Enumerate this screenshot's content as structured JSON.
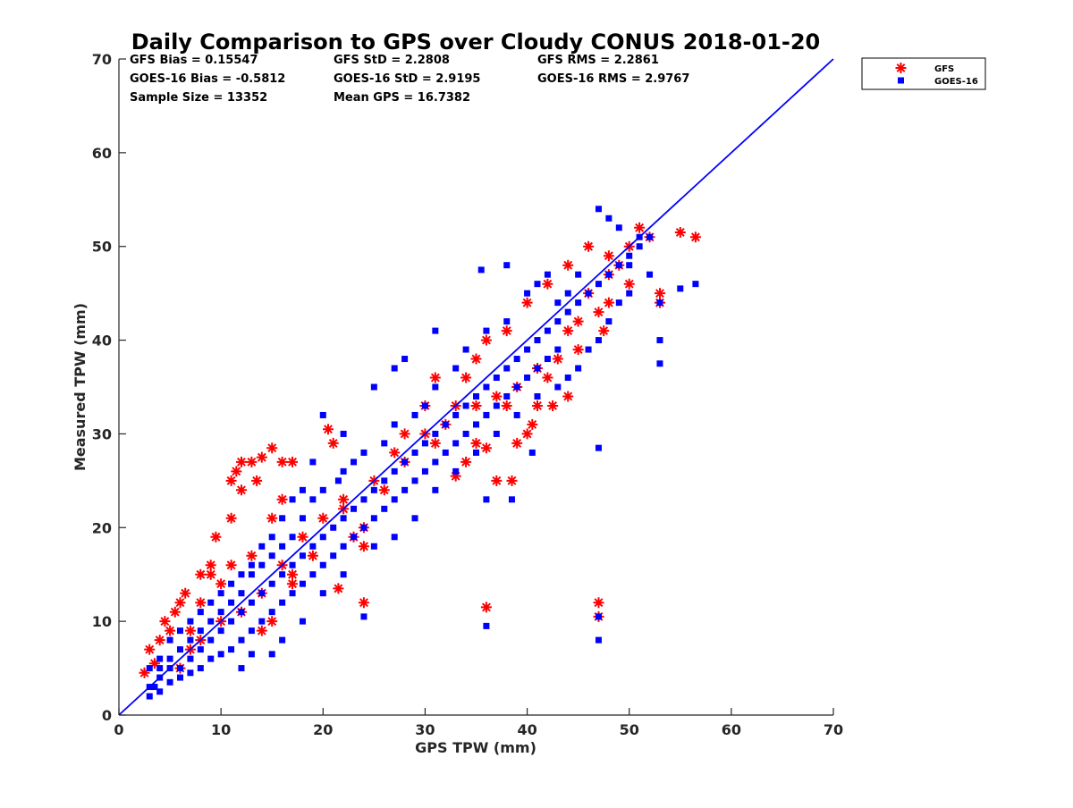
{
  "chart_data": {
    "type": "scatter",
    "title": "Daily Comparison to GPS over Cloudy CONUS 2018-01-20",
    "xlabel": "GPS TPW (mm)",
    "ylabel": "Measured TPW (mm)",
    "xlim": [
      0,
      70
    ],
    "ylim": [
      0,
      70
    ],
    "xticks": [
      "0",
      "10",
      "20",
      "30",
      "40",
      "50",
      "60",
      "70"
    ],
    "yticks": [
      "0",
      "10",
      "20",
      "30",
      "40",
      "50",
      "60",
      "70"
    ],
    "grid": false,
    "legend_position": "outside-top-right",
    "stats": [
      [
        "GFS Bias = 0.15547",
        "GFS StD = 2.2808",
        "GFS RMS = 2.2861"
      ],
      [
        "GOES-16 Bias = -0.5812",
        "GOES-16 StD = 2.9195",
        "GOES-16 RMS = 2.9767"
      ],
      [
        "Sample Size = 13352",
        "Mean GPS = 16.7382"
      ]
    ],
    "reference_line": {
      "from": [
        0,
        0
      ],
      "to": [
        70,
        70
      ],
      "color": "#0000ff"
    },
    "series": [
      {
        "name": "GFS",
        "marker": "asterisk",
        "color": "#ff0000",
        "points": [
          [
            2.5,
            4.5
          ],
          [
            3.5,
            5.5
          ],
          [
            3,
            7
          ],
          [
            4,
            8
          ],
          [
            4.5,
            10
          ],
          [
            5,
            9
          ],
          [
            6,
            12
          ],
          [
            5.5,
            11
          ],
          [
            6.5,
            13
          ],
          [
            8,
            15
          ],
          [
            9,
            16
          ],
          [
            9.5,
            19
          ],
          [
            11,
            25
          ],
          [
            11.5,
            26
          ],
          [
            12,
            27
          ],
          [
            13,
            27
          ],
          [
            14,
            27.5
          ],
          [
            15,
            28.5
          ],
          [
            16,
            27
          ],
          [
            17,
            27
          ],
          [
            12,
            24
          ],
          [
            13.5,
            25
          ],
          [
            11,
            21
          ],
          [
            20.5,
            30.5
          ],
          [
            21,
            29
          ],
          [
            24,
            12
          ],
          [
            21.5,
            13.5
          ],
          [
            24,
            18
          ],
          [
            24,
            20
          ],
          [
            23,
            19
          ],
          [
            16,
            16
          ],
          [
            18,
            19
          ],
          [
            20,
            21
          ],
          [
            22,
            22
          ],
          [
            25,
            25
          ],
          [
            27,
            28
          ],
          [
            28,
            30
          ],
          [
            30,
            30
          ],
          [
            31,
            29
          ],
          [
            32,
            31
          ],
          [
            33,
            25.5
          ],
          [
            34,
            27
          ],
          [
            35,
            29
          ],
          [
            36,
            28.5
          ],
          [
            37,
            25
          ],
          [
            38.5,
            25
          ],
          [
            39,
            29
          ],
          [
            40,
            30
          ],
          [
            40.5,
            31
          ],
          [
            38,
            33
          ],
          [
            39,
            35
          ],
          [
            41,
            33
          ],
          [
            42.5,
            33
          ],
          [
            44,
            34
          ],
          [
            42,
            36
          ],
          [
            43,
            38
          ],
          [
            44,
            41
          ],
          [
            45,
            42
          ],
          [
            46,
            45
          ],
          [
            47,
            43
          ],
          [
            48,
            47
          ],
          [
            49,
            48
          ],
          [
            50,
            50
          ],
          [
            51,
            52
          ],
          [
            52,
            51
          ],
          [
            53,
            45
          ],
          [
            53,
            44
          ],
          [
            55,
            51.5
          ],
          [
            56.5,
            51
          ],
          [
            47.5,
            41
          ],
          [
            36,
            11.5
          ],
          [
            47,
            12
          ],
          [
            47,
            10.5
          ],
          [
            30,
            33
          ],
          [
            31,
            36
          ],
          [
            34,
            36
          ],
          [
            35,
            38
          ],
          [
            36,
            40
          ],
          [
            38,
            41
          ],
          [
            40,
            44
          ],
          [
            42,
            46
          ],
          [
            44,
            48
          ],
          [
            46,
            50
          ],
          [
            48,
            49
          ],
          [
            50,
            46
          ],
          [
            48,
            44
          ],
          [
            45,
            39
          ],
          [
            41,
            37
          ],
          [
            37,
            34
          ],
          [
            35,
            33
          ],
          [
            33,
            33
          ],
          [
            28,
            27
          ],
          [
            26,
            24
          ],
          [
            22,
            23
          ],
          [
            19,
            17
          ],
          [
            17,
            15
          ],
          [
            14,
            13
          ],
          [
            12,
            11
          ],
          [
            10,
            10
          ],
          [
            8,
            8
          ],
          [
            7,
            7
          ],
          [
            6,
            5
          ],
          [
            10,
            14
          ],
          [
            11,
            16
          ],
          [
            9,
            15
          ],
          [
            8,
            12
          ],
          [
            7,
            9
          ],
          [
            15,
            21
          ],
          [
            16,
            23
          ],
          [
            13,
            17
          ],
          [
            14,
            9
          ],
          [
            15,
            10
          ],
          [
            17,
            14
          ]
        ]
      },
      {
        "name": "GOES-16",
        "marker": "square",
        "color": "#0000ff",
        "points": [
          [
            3,
            2
          ],
          [
            3.5,
            3
          ],
          [
            4,
            4
          ],
          [
            5,
            5
          ],
          [
            6,
            5
          ],
          [
            7,
            6
          ],
          [
            8,
            7
          ],
          [
            9,
            8
          ],
          [
            10,
            9
          ],
          [
            11,
            10
          ],
          [
            12,
            11
          ],
          [
            13,
            12
          ],
          [
            14,
            13
          ],
          [
            15,
            14
          ],
          [
            16,
            15
          ],
          [
            17,
            16
          ],
          [
            18,
            17
          ],
          [
            19,
            18
          ],
          [
            20,
            19
          ],
          [
            21,
            20
          ],
          [
            22,
            21
          ],
          [
            23,
            22
          ],
          [
            24,
            23
          ],
          [
            25,
            24
          ],
          [
            26,
            25
          ],
          [
            27,
            26
          ],
          [
            28,
            27
          ],
          [
            29,
            28
          ],
          [
            30,
            29
          ],
          [
            31,
            30
          ],
          [
            32,
            31
          ],
          [
            33,
            32
          ],
          [
            34,
            33
          ],
          [
            35,
            34
          ],
          [
            36,
            35
          ],
          [
            37,
            36
          ],
          [
            38,
            37
          ],
          [
            39,
            38
          ],
          [
            40,
            39
          ],
          [
            41,
            40
          ],
          [
            42,
            41
          ],
          [
            43,
            42
          ],
          [
            44,
            43
          ],
          [
            45,
            44
          ],
          [
            46,
            45
          ],
          [
            47,
            46
          ],
          [
            48,
            47
          ],
          [
            49,
            48
          ],
          [
            50,
            49
          ],
          [
            51,
            50
          ],
          [
            52,
            51
          ],
          [
            47,
            54
          ],
          [
            48,
            53
          ],
          [
            49,
            52
          ],
          [
            51,
            51
          ],
          [
            50,
            48
          ],
          [
            52,
            47
          ],
          [
            53,
            44
          ],
          [
            53,
            40
          ],
          [
            53,
            37.5
          ],
          [
            55,
            45.5
          ],
          [
            56.5,
            46
          ],
          [
            35.5,
            47.5
          ],
          [
            38,
            48
          ],
          [
            41,
            46
          ],
          [
            47,
            28.5
          ],
          [
            36,
            9.5
          ],
          [
            47,
            8
          ],
          [
            47,
            10.5
          ],
          [
            24,
            10.5
          ],
          [
            36,
            23
          ],
          [
            38.5,
            23
          ],
          [
            40.5,
            28
          ],
          [
            31,
            41
          ],
          [
            28,
            38
          ],
          [
            27,
            37
          ],
          [
            25,
            35
          ],
          [
            22,
            30
          ],
          [
            20,
            32
          ],
          [
            21.5,
            25
          ],
          [
            19,
            27
          ],
          [
            18,
            24
          ],
          [
            17,
            23
          ],
          [
            16,
            21
          ],
          [
            15,
            19
          ],
          [
            14,
            18
          ],
          [
            13,
            16
          ],
          [
            12,
            15
          ],
          [
            11,
            14
          ],
          [
            10,
            13
          ],
          [
            9,
            12
          ],
          [
            8,
            11
          ],
          [
            7,
            10
          ],
          [
            6,
            9
          ],
          [
            5,
            8
          ],
          [
            4,
            6
          ],
          [
            3,
            5
          ],
          [
            3,
            3
          ],
          [
            4,
            2.5
          ],
          [
            5,
            3.5
          ],
          [
            6,
            4
          ],
          [
            7,
            4.5
          ],
          [
            8,
            5
          ],
          [
            9,
            6
          ],
          [
            10,
            6.5
          ],
          [
            11,
            7
          ],
          [
            12,
            8
          ],
          [
            13,
            9
          ],
          [
            14,
            10
          ],
          [
            15,
            11
          ],
          [
            16,
            12
          ],
          [
            17,
            13
          ],
          [
            18,
            14
          ],
          [
            19,
            15
          ],
          [
            20,
            16
          ],
          [
            21,
            17
          ],
          [
            22,
            18
          ],
          [
            23,
            19
          ],
          [
            24,
            20
          ],
          [
            25,
            21
          ],
          [
            26,
            22
          ],
          [
            27,
            23
          ],
          [
            28,
            24
          ],
          [
            29,
            25
          ],
          [
            30,
            26
          ],
          [
            31,
            27
          ],
          [
            32,
            28
          ],
          [
            33,
            29
          ],
          [
            34,
            30
          ],
          [
            35,
            31
          ],
          [
            36,
            32
          ],
          [
            37,
            33
          ],
          [
            38,
            34
          ],
          [
            39,
            35
          ],
          [
            40,
            36
          ],
          [
            41,
            37
          ],
          [
            42,
            38
          ],
          [
            43,
            39
          ],
          [
            44,
            36
          ],
          [
            45,
            37
          ],
          [
            46,
            39
          ],
          [
            47,
            40
          ],
          [
            48,
            42
          ],
          [
            49,
            44
          ],
          [
            50,
            45
          ],
          [
            43,
            44
          ],
          [
            44,
            45
          ],
          [
            45,
            47
          ],
          [
            42,
            47
          ],
          [
            40,
            45
          ],
          [
            38,
            42
          ],
          [
            36,
            41
          ],
          [
            34,
            39
          ],
          [
            33,
            37
          ],
          [
            31,
            35
          ],
          [
            30,
            33
          ],
          [
            29,
            32
          ],
          [
            27,
            31
          ],
          [
            26,
            29
          ],
          [
            24,
            28
          ],
          [
            23,
            27
          ],
          [
            22,
            26
          ],
          [
            20,
            24
          ],
          [
            19,
            23
          ],
          [
            18,
            21
          ],
          [
            17,
            19
          ],
          [
            16,
            18
          ],
          [
            15,
            17
          ],
          [
            14,
            16
          ],
          [
            13,
            15
          ],
          [
            12,
            13
          ],
          [
            11,
            12
          ],
          [
            10,
            11
          ],
          [
            9,
            10
          ],
          [
            8,
            9
          ],
          [
            7,
            8
          ],
          [
            6,
            7
          ],
          [
            5,
            6
          ],
          [
            4,
            5
          ],
          [
            13,
            6.5
          ],
          [
            15,
            6.5
          ],
          [
            12,
            5
          ],
          [
            16,
            8
          ],
          [
            18,
            10
          ],
          [
            20,
            13
          ],
          [
            22,
            15
          ],
          [
            25,
            18
          ],
          [
            27,
            19
          ],
          [
            29,
            21
          ],
          [
            31,
            24
          ],
          [
            33,
            26
          ],
          [
            35,
            28
          ],
          [
            37,
            30
          ],
          [
            39,
            32
          ],
          [
            41,
            34
          ],
          [
            43,
            35
          ]
        ]
      }
    ]
  }
}
